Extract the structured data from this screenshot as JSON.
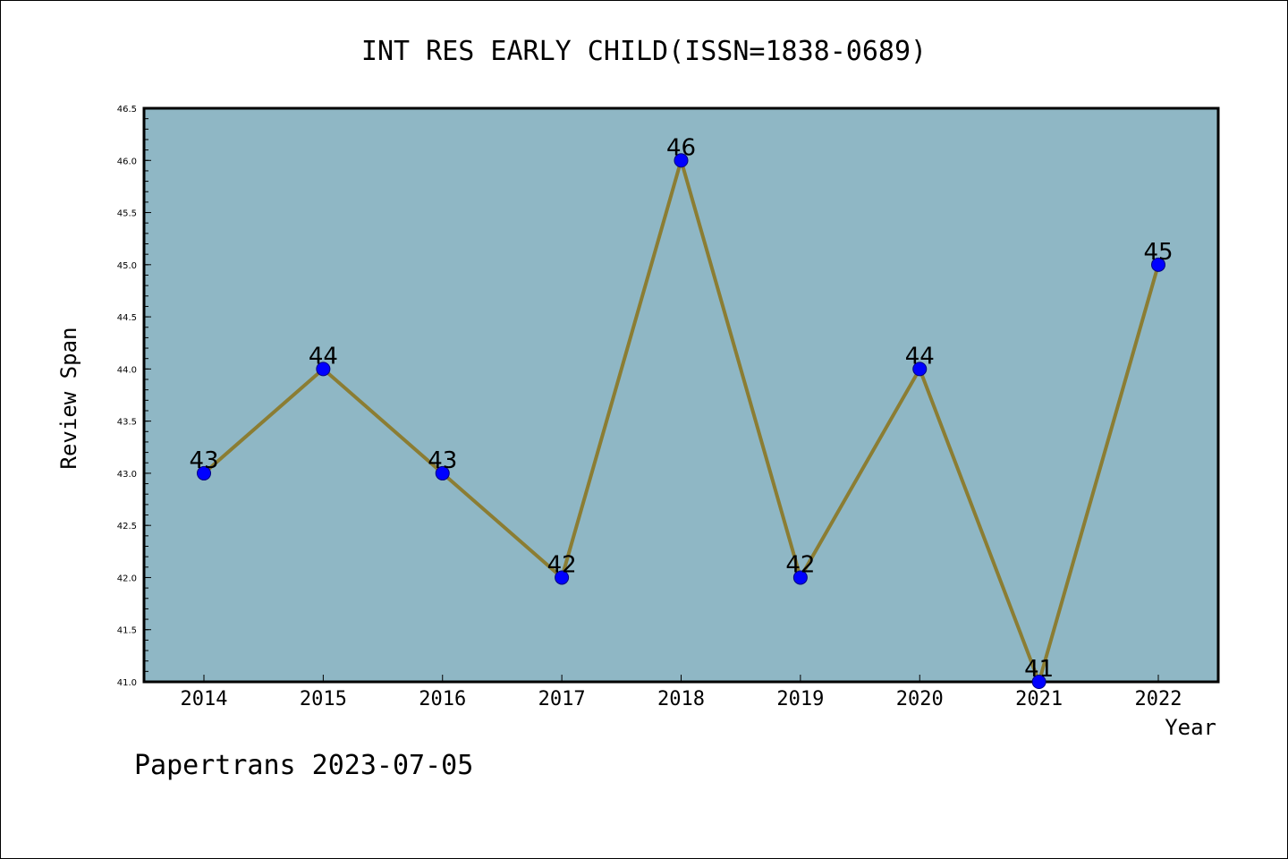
{
  "chart_data": {
    "type": "line",
    "title": "INT RES EARLY CHILD(ISSN=1838-0689)",
    "xlabel": "Year",
    "ylabel": "Review Span",
    "categories": [
      "2014",
      "2015",
      "2016",
      "2017",
      "2018",
      "2019",
      "2020",
      "2021",
      "2022"
    ],
    "series": [
      {
        "values": [
          43,
          44,
          43,
          42,
          46,
          42,
          44,
          41,
          45
        ]
      }
    ],
    "data_labels": [
      "43",
      "44",
      "43",
      "42",
      "46",
      "42",
      "44",
      "41",
      "45"
    ],
    "ylim": [
      41.0,
      46.5
    ],
    "yticks": [
      "41.0",
      "41.5",
      "42.0",
      "42.5",
      "43.0",
      "43.5",
      "44.0",
      "44.5",
      "45.0",
      "45.5",
      "46.0",
      "46.5"
    ],
    "grid": false,
    "colors": {
      "plot_background": "#8fb7c5",
      "line": "#8b7d33",
      "marker": "#0000ff",
      "marker_edge": "#000080"
    }
  },
  "footer": {
    "text": "Papertrans 2023-07-05"
  }
}
